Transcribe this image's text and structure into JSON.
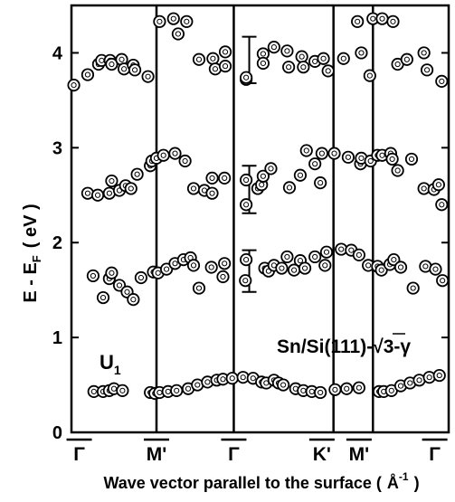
{
  "chart_data": {
    "type": "scatter",
    "ylabel": "E - E",
    "ylabel_sub": "F",
    "ylabel_unit": "( eV )",
    "xlabel": "Wave vector parallel to the surface (",
    "xlabel_unit": "Å",
    "xlabel_sup": "-1",
    "xlabel_close": ")",
    "ylim": [
      0,
      4.5
    ],
    "yticks": [
      0,
      1,
      2,
      3,
      4
    ],
    "grid": false,
    "annotation": {
      "main": "Sn/Si(111)-",
      "sqrt": "√3-γ"
    },
    "band_label": {
      "text": "U",
      "sub": "1"
    },
    "symmetry_points": [
      {
        "label": "Γ",
        "x": 0.0
      },
      {
        "label": "M'",
        "x": 1.0
      },
      {
        "label": "Γ",
        "x": 2.0
      },
      {
        "label": "K'",
        "x": 3.14
      },
      {
        "label": "M'",
        "x": 3.62
      },
      {
        "label": "Γ",
        "x": 4.6
      }
    ],
    "xlim": [
      -0.1,
      4.78
    ],
    "dividers": [
      1.0,
      2.0,
      3.29,
      3.8
    ],
    "error_bars": [
      {
        "x": 2.2,
        "y": 3.97,
        "low": 3.68,
        "high": 4.17
      },
      {
        "x": 2.2,
        "y": 2.56,
        "low": 2.31,
        "high": 2.81
      },
      {
        "x": 2.2,
        "y": 1.71,
        "low": 1.48,
        "high": 1.92
      }
    ],
    "points": [
      [
        -0.07,
        3.66
      ],
      [
        0.11,
        3.77
      ],
      [
        0.25,
        3.88
      ],
      [
        0.29,
        3.92
      ],
      [
        0.4,
        3.92
      ],
      [
        0.42,
        3.88
      ],
      [
        0.55,
        3.93
      ],
      [
        0.58,
        3.83
      ],
      [
        0.7,
        3.87
      ],
      [
        0.72,
        3.82
      ],
      [
        0.89,
        3.75
      ],
      [
        1.04,
        4.33
      ],
      [
        1.22,
        4.36
      ],
      [
        1.28,
        4.2
      ],
      [
        1.39,
        4.33
      ],
      [
        1.55,
        3.93
      ],
      [
        1.73,
        3.94
      ],
      [
        1.76,
        3.83
      ],
      [
        1.89,
        4.01
      ],
      [
        1.89,
        3.86
      ],
      [
        2.16,
        3.72
      ],
      [
        2.16,
        3.74
      ],
      [
        2.38,
        3.99
      ],
      [
        2.38,
        3.89
      ],
      [
        2.52,
        4.06
      ],
      [
        2.69,
        4.02
      ],
      [
        2.71,
        3.85
      ],
      [
        2.88,
        3.96
      ],
      [
        2.9,
        3.85
      ],
      [
        3.05,
        3.91
      ],
      [
        3.16,
        3.94
      ],
      [
        3.22,
        3.81
      ],
      [
        3.42,
        3.94
      ],
      [
        3.6,
        4.33
      ],
      [
        3.65,
        4.0
      ],
      [
        3.76,
        3.76
      ],
      [
        3.8,
        4.36
      ],
      [
        3.92,
        4.36
      ],
      [
        4.06,
        4.33
      ],
      [
        4.12,
        3.88
      ],
      [
        4.24,
        3.93
      ],
      [
        4.46,
        4.0
      ],
      [
        4.5,
        3.82
      ],
      [
        4.69,
        3.7
      ],
      [
        0.11,
        2.52
      ],
      [
        0.24,
        2.5
      ],
      [
        0.39,
        2.52
      ],
      [
        0.42,
        2.65
      ],
      [
        0.52,
        2.55
      ],
      [
        0.6,
        2.6
      ],
      [
        0.67,
        2.57
      ],
      [
        0.75,
        2.72
      ],
      [
        0.92,
        2.81
      ],
      [
        0.94,
        2.86
      ],
      [
        1.0,
        2.89
      ],
      [
        1.09,
        2.92
      ],
      [
        1.24,
        2.94
      ],
      [
        1.37,
        2.86
      ],
      [
        1.48,
        2.57
      ],
      [
        1.62,
        2.55
      ],
      [
        1.72,
        2.52
      ],
      [
        1.72,
        2.68
      ],
      [
        1.88,
        2.68
      ],
      [
        2.16,
        2.4
      ],
      [
        2.16,
        2.66
      ],
      [
        2.31,
        2.57
      ],
      [
        2.36,
        2.61
      ],
      [
        2.38,
        2.7
      ],
      [
        2.48,
        2.78
      ],
      [
        2.72,
        2.58
      ],
      [
        2.86,
        2.71
      ],
      [
        2.94,
        2.97
      ],
      [
        3.05,
        2.83
      ],
      [
        3.12,
        2.63
      ],
      [
        3.14,
        2.94
      ],
      [
        3.3,
        2.94
      ],
      [
        3.48,
        2.9
      ],
      [
        3.64,
        2.83
      ],
      [
        3.65,
        2.89
      ],
      [
        3.77,
        2.86
      ],
      [
        3.86,
        2.92
      ],
      [
        3.92,
        2.92
      ],
      [
        4.03,
        2.94
      ],
      [
        4.05,
        2.88
      ],
      [
        4.12,
        2.76
      ],
      [
        4.3,
        2.88
      ],
      [
        4.46,
        2.57
      ],
      [
        4.59,
        2.56
      ],
      [
        4.65,
        2.61
      ],
      [
        4.69,
        2.4
      ],
      [
        0.18,
        1.65
      ],
      [
        0.31,
        1.42
      ],
      [
        0.39,
        1.62
      ],
      [
        0.42,
        1.68
      ],
      [
        0.52,
        1.55
      ],
      [
        0.62,
        1.48
      ],
      [
        0.7,
        1.4
      ],
      [
        0.8,
        1.63
      ],
      [
        0.96,
        1.69
      ],
      [
        1.02,
        1.68
      ],
      [
        1.13,
        1.72
      ],
      [
        1.24,
        1.78
      ],
      [
        1.35,
        1.82
      ],
      [
        1.44,
        1.84
      ],
      [
        1.48,
        1.76
      ],
      [
        1.55,
        1.52
      ],
      [
        1.71,
        1.74
      ],
      [
        1.86,
        1.64
      ],
      [
        1.88,
        1.78
      ],
      [
        2.15,
        1.6
      ],
      [
        2.16,
        1.82
      ],
      [
        2.4,
        1.73
      ],
      [
        2.45,
        1.7
      ],
      [
        2.52,
        1.76
      ],
      [
        2.62,
        1.73
      ],
      [
        2.69,
        1.85
      ],
      [
        2.78,
        1.71
      ],
      [
        2.86,
        1.81
      ],
      [
        2.92,
        1.73
      ],
      [
        3.05,
        1.85
      ],
      [
        3.18,
        1.76
      ],
      [
        3.2,
        1.9
      ],
      [
        3.39,
        1.93
      ],
      [
        3.52,
        1.92
      ],
      [
        3.62,
        1.87
      ],
      [
        3.74,
        1.76
      ],
      [
        3.86,
        1.75
      ],
      [
        3.91,
        1.71
      ],
      [
        4.02,
        1.77
      ],
      [
        4.07,
        1.82
      ],
      [
        4.16,
        1.74
      ],
      [
        4.32,
        1.52
      ],
      [
        4.48,
        1.75
      ],
      [
        4.61,
        1.72
      ],
      [
        4.7,
        1.6
      ],
      [
        0.19,
        0.43
      ],
      [
        0.31,
        0.43
      ],
      [
        0.39,
        0.44
      ],
      [
        0.45,
        0.46
      ],
      [
        0.56,
        0.44
      ],
      [
        0.92,
        0.42
      ],
      [
        0.98,
        0.41
      ],
      [
        1.04,
        0.42
      ],
      [
        1.15,
        0.43
      ],
      [
        1.26,
        0.44
      ],
      [
        1.41,
        0.46
      ],
      [
        1.53,
        0.5
      ],
      [
        1.66,
        0.53
      ],
      [
        1.78,
        0.55
      ],
      [
        1.86,
        0.56
      ],
      [
        1.98,
        0.57
      ],
      [
        2.12,
        0.58
      ],
      [
        2.25,
        0.57
      ],
      [
        2.36,
        0.53
      ],
      [
        2.42,
        0.52
      ],
      [
        2.52,
        0.55
      ],
      [
        2.58,
        0.52
      ],
      [
        2.64,
        0.5
      ],
      [
        2.8,
        0.46
      ],
      [
        2.9,
        0.44
      ],
      [
        3.01,
        0.43
      ],
      [
        3.12,
        0.42
      ],
      [
        3.31,
        0.45
      ],
      [
        3.46,
        0.46
      ],
      [
        3.62,
        0.47
      ],
      [
        3.88,
        0.43
      ],
      [
        3.94,
        0.43
      ],
      [
        4.04,
        0.44
      ],
      [
        4.16,
        0.49
      ],
      [
        4.28,
        0.52
      ],
      [
        4.4,
        0.55
      ],
      [
        4.53,
        0.58
      ],
      [
        4.66,
        0.6
      ]
    ]
  }
}
